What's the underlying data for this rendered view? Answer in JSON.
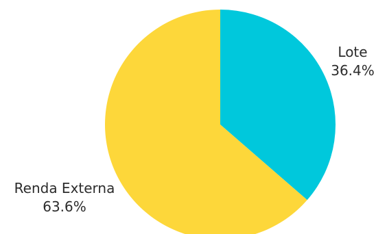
{
  "chart_data": {
    "type": "pie",
    "title": "",
    "slices": [
      {
        "label": "Lote",
        "value": 36.4,
        "display": "36.4%",
        "color": "#00C8DC"
      },
      {
        "label": "Renda Externa",
        "value": 63.6,
        "display": "63.6%",
        "color": "#FDD73A"
      }
    ],
    "start": "top",
    "direction": "clockwise"
  }
}
